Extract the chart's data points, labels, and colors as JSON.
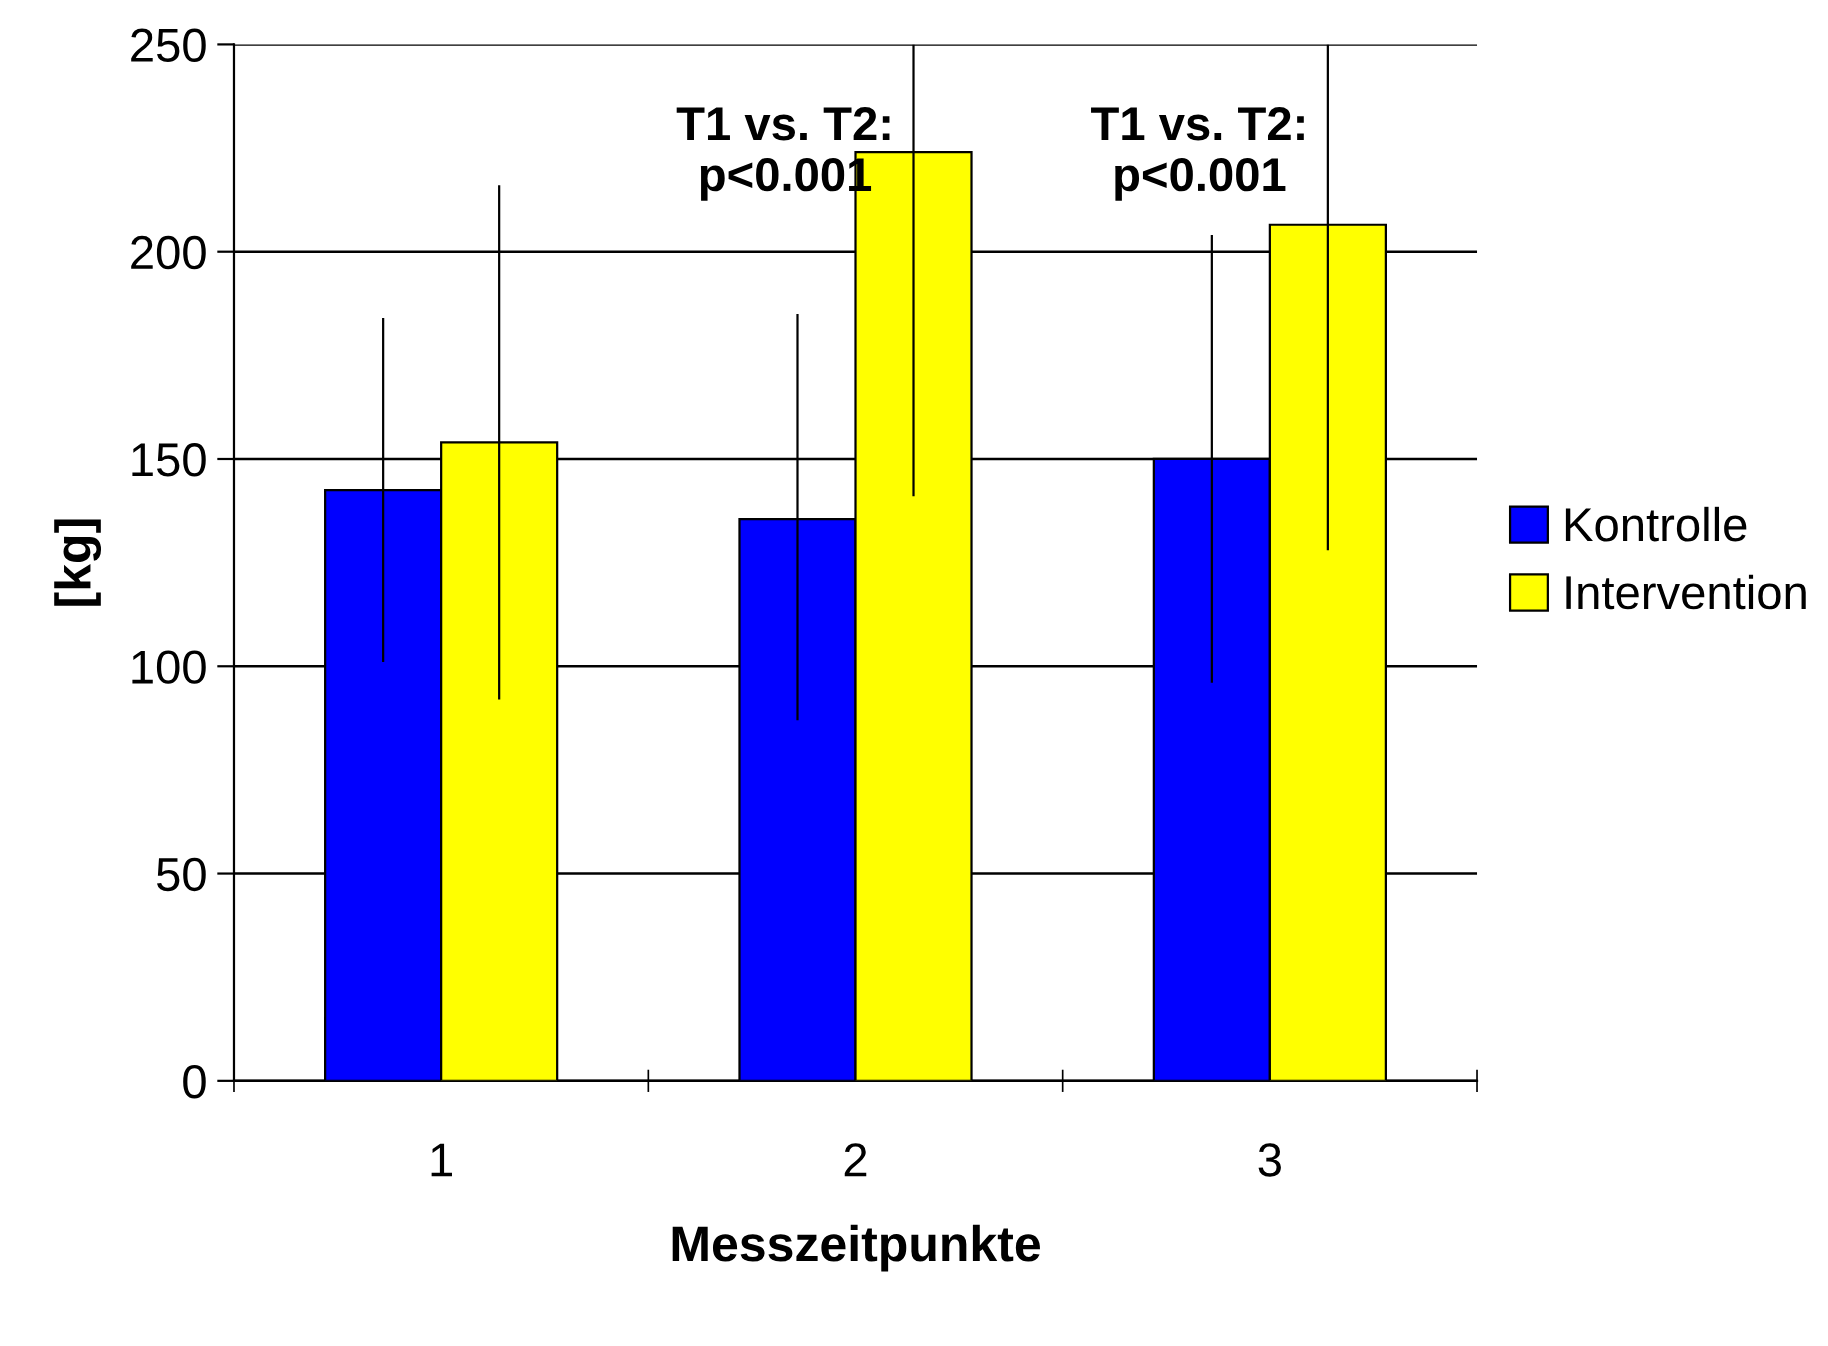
{
  "chart_data": {
    "type": "bar",
    "xlabel": "Messzeitpunkte",
    "ylabel": "[kg]",
    "categories": [
      "1",
      "2",
      "3"
    ],
    "series": [
      {
        "name": "Kontrolle",
        "color": "#0000ff",
        "values": [
          142.5,
          135.5,
          150
        ],
        "errors": [
          [
            101,
            184
          ],
          [
            87,
            185
          ],
          [
            96,
            204
          ]
        ]
      },
      {
        "name": "Intervention",
        "color": "#ffff00",
        "values": [
          154,
          224,
          206.5
        ],
        "errors": [
          [
            92,
            216
          ],
          [
            141,
            250
          ],
          [
            128,
            250
          ]
        ]
      }
    ],
    "ylim": [
      0,
      250
    ],
    "yticks": [
      0,
      50,
      100,
      150,
      200,
      250
    ],
    "grid": "y",
    "legend": "right",
    "annotations": [
      "T1 vs. T2:\np<0.001",
      "T1 vs. T2:\np<0.001"
    ]
  }
}
